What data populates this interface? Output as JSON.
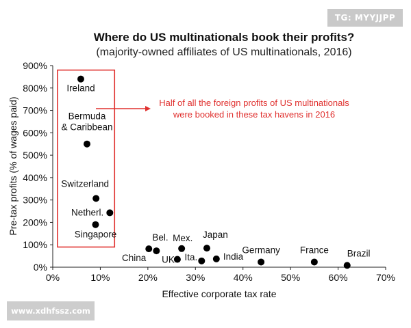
{
  "badge": {
    "text": "TG: MYYJJPP"
  },
  "watermark": {
    "text": "www.xdhfssz.com"
  },
  "chart_data": {
    "type": "scatter",
    "title": "Where do US multinationals book their profits?",
    "subtitle": "(majority-owned affiliates of US multinationals, 2016)",
    "xlabel": "Effective corporate tax rate",
    "ylabel": "Pre-tax profits (% of wages paid)",
    "xlim": [
      0,
      70
    ],
    "ylim": [
      0,
      900
    ],
    "x_ticks": [
      "0%",
      "10%",
      "20%",
      "30%",
      "40%",
      "50%",
      "60%",
      "70%"
    ],
    "y_ticks": [
      "0%",
      "100%",
      "200%",
      "300%",
      "400%",
      "500%",
      "600%",
      "700%",
      "800%",
      "900%"
    ],
    "grid": false,
    "marker_color": "#000000",
    "highlight_color": "#e0312f",
    "points": [
      {
        "label": "Ireland",
        "x": 5.9,
        "y": 840
      },
      {
        "label": "Bermuda\n& Caribbean",
        "x": 7.2,
        "y": 550
      },
      {
        "label": "Switzerland",
        "x": 9.1,
        "y": 307
      },
      {
        "label": "Netherl.",
        "x": 12.0,
        "y": 243
      },
      {
        "label": "Singapore",
        "x": 9.0,
        "y": 190
      },
      {
        "label": "China",
        "x": 20.2,
        "y": 82
      },
      {
        "label": "Bel.",
        "x": 21.8,
        "y": 73
      },
      {
        "label": "Mex.",
        "x": 27.1,
        "y": 83
      },
      {
        "label": "UK",
        "x": 26.2,
        "y": 35
      },
      {
        "label": "Ita.",
        "x": 31.3,
        "y": 28
      },
      {
        "label": "Japan",
        "x": 32.4,
        "y": 85
      },
      {
        "label": "India",
        "x": 34.4,
        "y": 37
      },
      {
        "label": "Germany",
        "x": 43.8,
        "y": 23
      },
      {
        "label": "France",
        "x": 55.0,
        "y": 23
      },
      {
        "label": "Brazil",
        "x": 61.9,
        "y": 8
      }
    ],
    "highlight_box": {
      "x_range": [
        1,
        13
      ],
      "y_range": [
        90,
        880
      ]
    },
    "annotation": "Half of all the foreign profits of US multinationals\nwere booked in these tax havens in 2016"
  }
}
